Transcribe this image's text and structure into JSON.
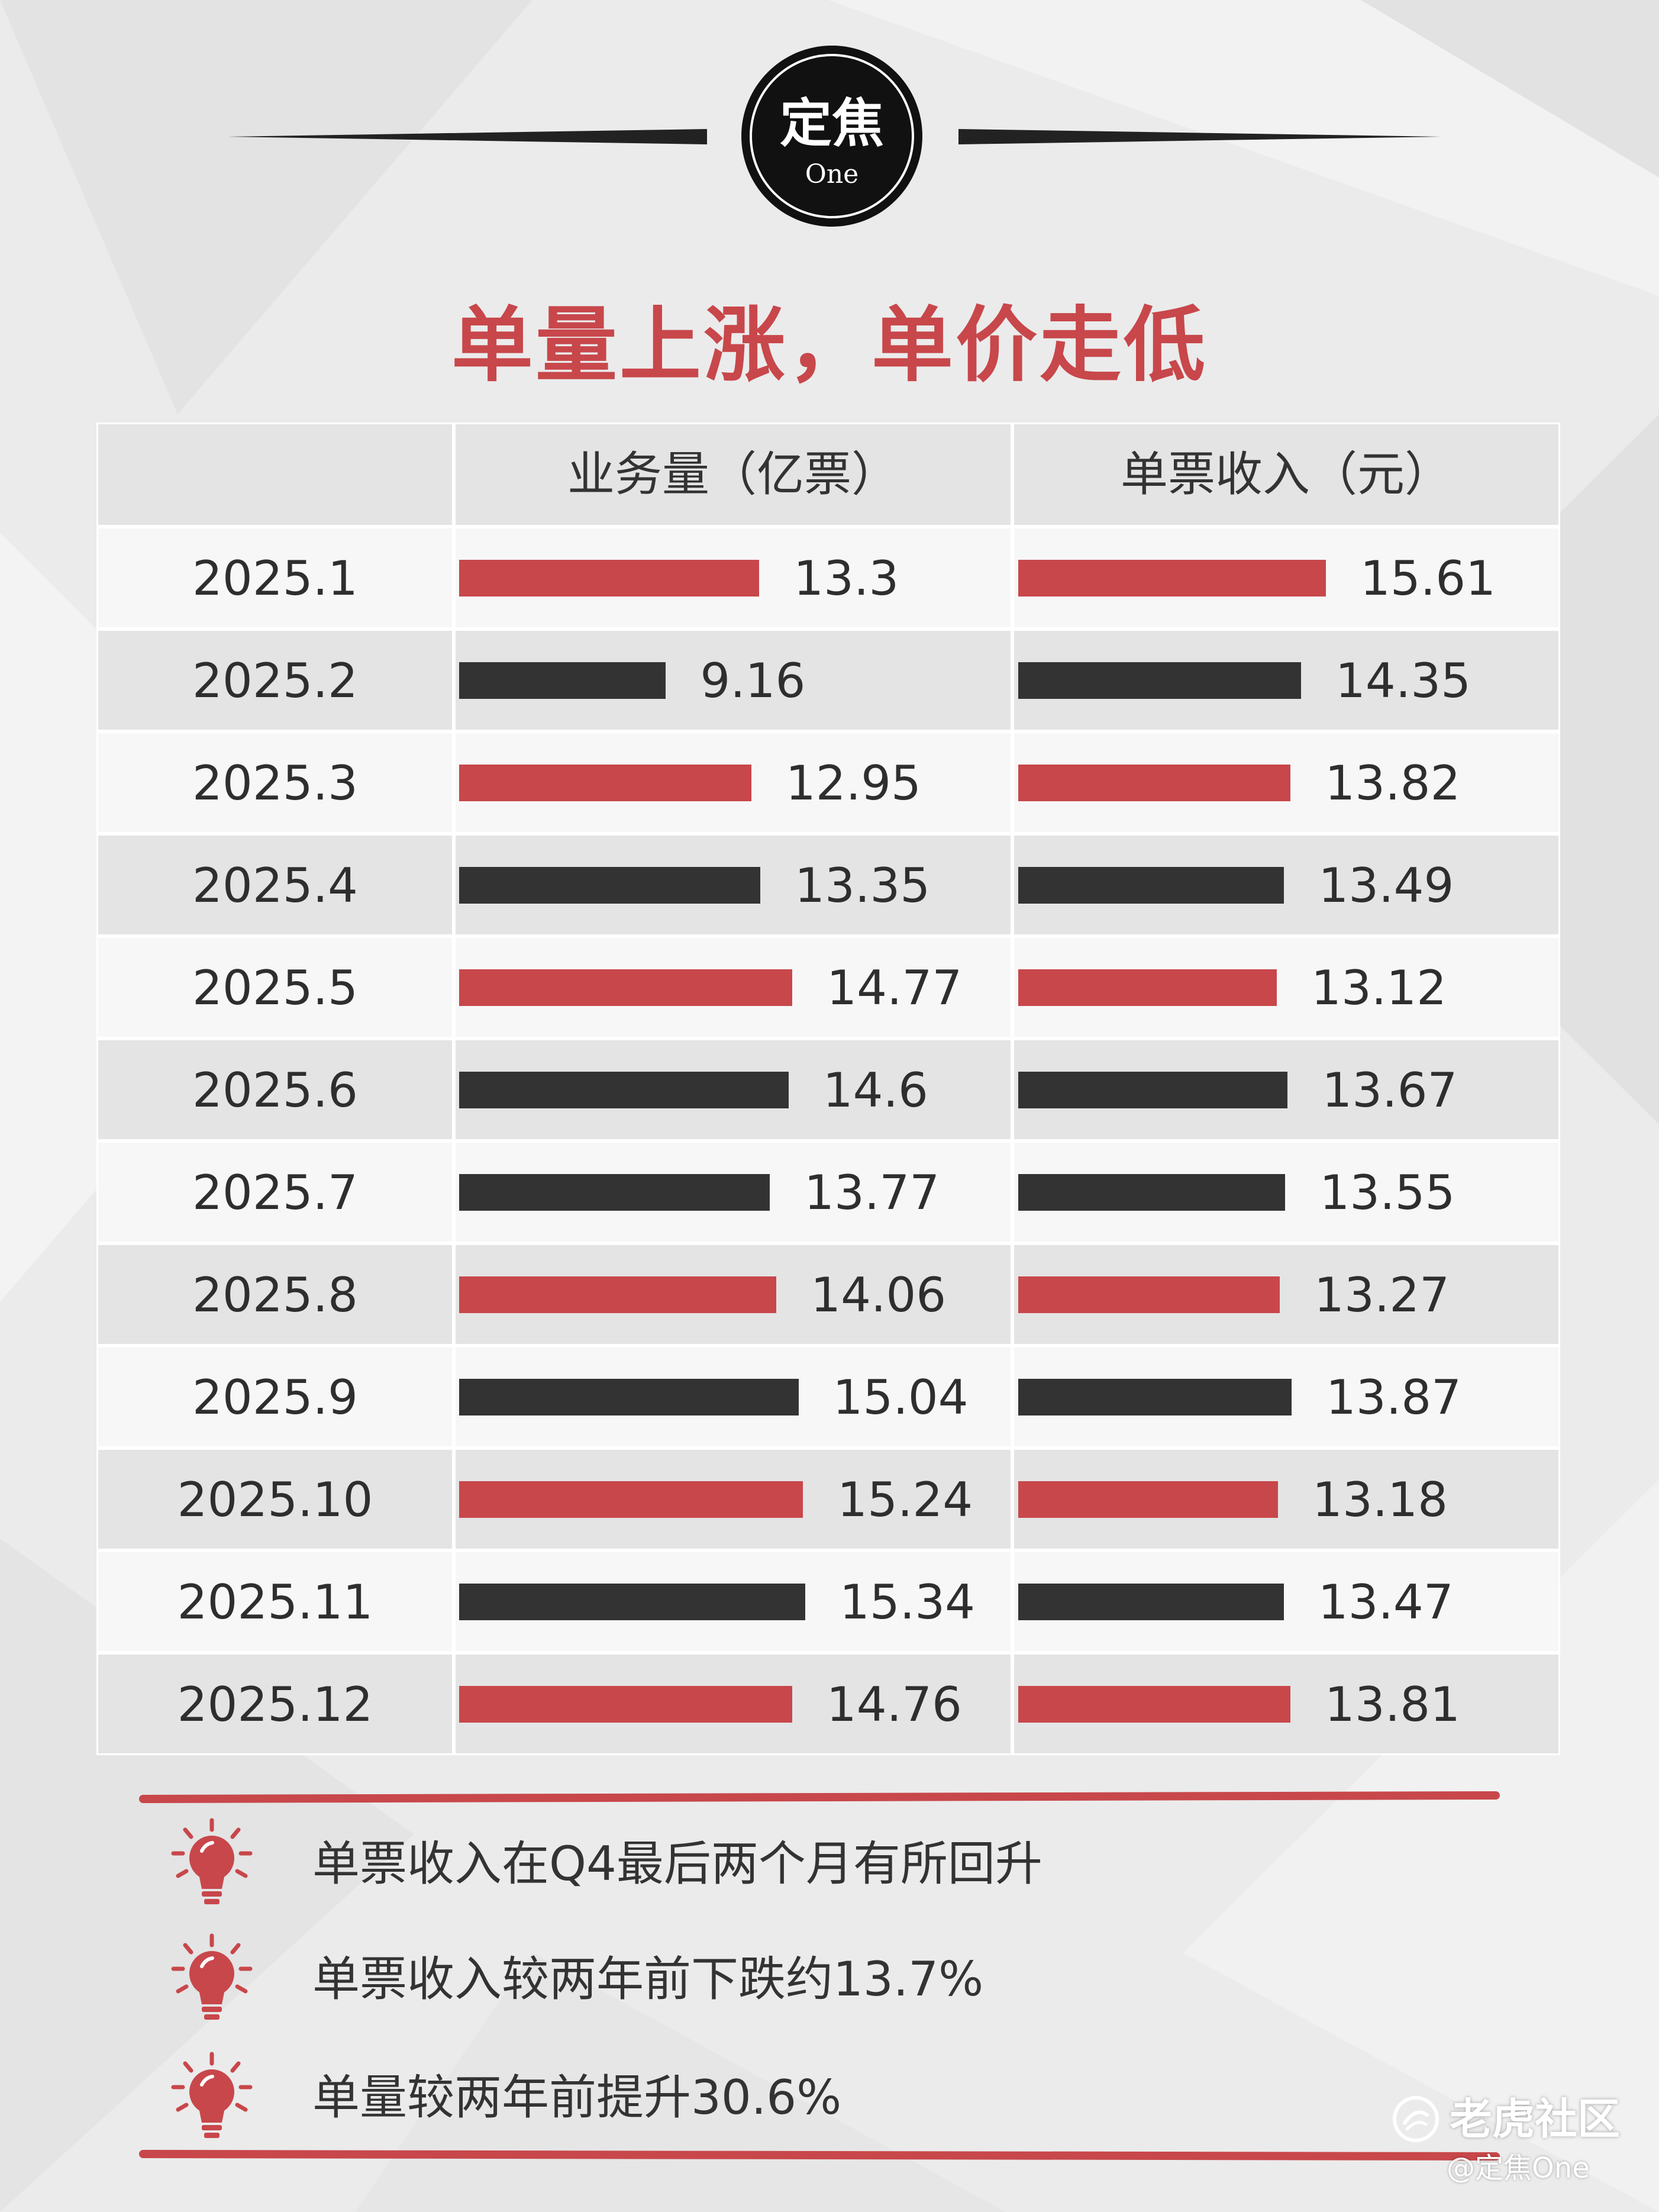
{
  "logo": {
    "line1": "定焦",
    "line2": "One"
  },
  "title": "单量上涨，单价走低",
  "colors": {
    "accent": "#c8474b",
    "dark": "#333333"
  },
  "chart_data": {
    "type": "table",
    "headers": [
      "",
      "业务量（亿票）",
      "单票收入（元）"
    ],
    "categories": [
      "2025.1",
      "2025.2",
      "2025.3",
      "2025.4",
      "2025.5",
      "2025.6",
      "2025.7",
      "2025.8",
      "2025.9",
      "2025.10",
      "2025.11",
      "2025.12"
    ],
    "series": [
      {
        "name": "业务量（亿票）",
        "values": [
          13.3,
          9.16,
          12.95,
          13.35,
          14.77,
          14.6,
          13.77,
          14.06,
          15.04,
          15.24,
          15.34,
          14.76
        ]
      },
      {
        "name": "单票收入（元）",
        "values": [
          15.61,
          14.35,
          13.82,
          13.49,
          13.12,
          13.67,
          13.55,
          13.27,
          13.87,
          13.18,
          13.47,
          13.81
        ]
      }
    ],
    "value_labels": [
      [
        "13.3",
        "9.16",
        "12.95",
        "13.35",
        "14.77",
        "14.6",
        "13.77",
        "14.06",
        "15.04",
        "15.24",
        "15.34",
        "14.76"
      ],
      [
        "15.61",
        "14.35",
        "13.82",
        "13.49",
        "13.12",
        "13.67",
        "13.55",
        "13.27",
        "13.87",
        "13.18",
        "13.47",
        "13.81"
      ]
    ],
    "bar_colors": [
      "red",
      "dark",
      "red",
      "dark",
      "red",
      "dark",
      "dark",
      "red",
      "dark",
      "red",
      "dark",
      "red"
    ]
  },
  "notes": [
    "单票收入在Q4最后两个月有所回升",
    "单票收入较两年前下跌约13.7%",
    "单量较两年前提升30.6%"
  ],
  "icons": {
    "note": "lightbulb-icon",
    "watermark": "tiger-logo-icon"
  },
  "watermark": {
    "name": "老虎社区",
    "handle": "@定焦One"
  }
}
